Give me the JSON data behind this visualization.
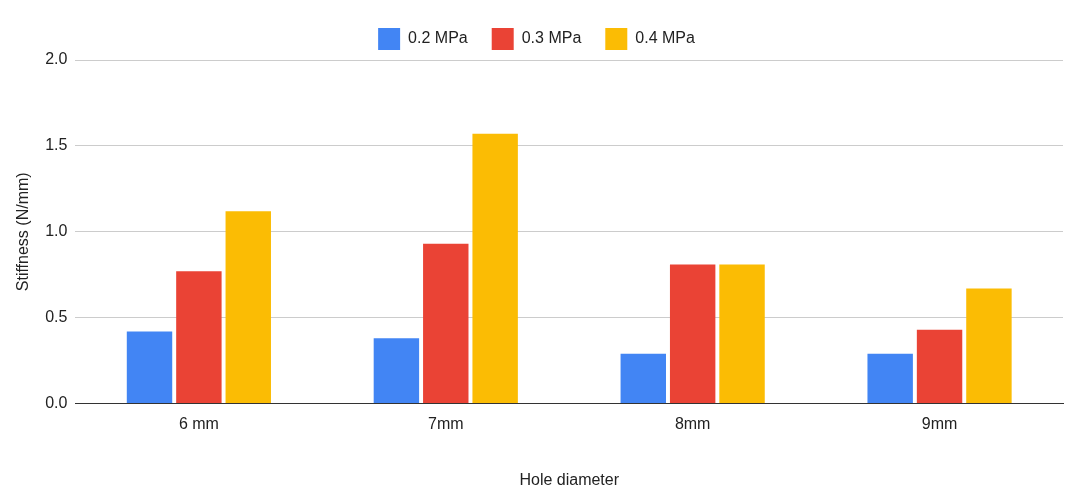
{
  "chart_data": {
    "type": "bar",
    "xlabel": "Hole diameter",
    "ylabel": "Stiffness (N/mm)",
    "categories": [
      "6 mm",
      "7mm",
      "8mm",
      "9mm"
    ],
    "series": [
      {
        "name": "0.2 MPa",
        "color": "#4285f4",
        "values": [
          0.42,
          0.38,
          0.29,
          0.29
        ]
      },
      {
        "name": "0.3 MPa",
        "color": "#ea4335",
        "values": [
          0.77,
          0.93,
          0.81,
          0.43
        ]
      },
      {
        "name": "0.4 MPa",
        "color": "#fbbc04",
        "values": [
          1.12,
          1.57,
          0.81,
          0.67
        ]
      }
    ],
    "ylim": [
      0,
      2
    ],
    "yticks": [
      {
        "value": 0,
        "label": "0.0"
      },
      {
        "value": 0.5,
        "label": "0.5"
      },
      {
        "value": 1,
        "label": "1.0"
      },
      {
        "value": 1.5,
        "label": "1.5"
      },
      {
        "value": 2,
        "label": "2.0"
      }
    ],
    "grid": "y",
    "legend": "top"
  }
}
